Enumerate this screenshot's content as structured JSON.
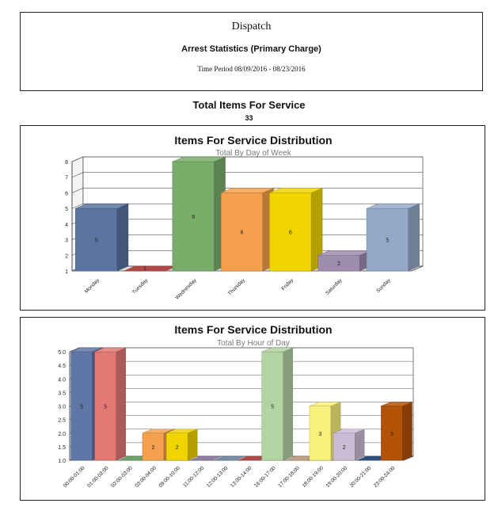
{
  "header": {
    "title": "Dispatch",
    "report": "Arrest Statistics (Primary Charge)",
    "period": "Time Period 08/09/2016 - 08/23/2016"
  },
  "total": {
    "label": "Total Items For Service",
    "value": "33"
  },
  "chart_data": [
    {
      "type": "bar",
      "title": "Items For Service Distribution",
      "subtitle": "Total By Day of Week",
      "categories": [
        "Monday",
        "Tuesday",
        "Wednesday",
        "Thursday",
        "Friday",
        "Saturday",
        "Sunday"
      ],
      "values": [
        5,
        1,
        8,
        6,
        6,
        2,
        5
      ],
      "data_labels": [
        "5",
        "1",
        "8",
        "6",
        "6",
        "2",
        "5"
      ],
      "colors": [
        "#5a74a0",
        "#b04a48",
        "#79ad6a",
        "#f4a04c",
        "#f0d400",
        "#9d8cae",
        "#94a9c8"
      ],
      "ylim": [
        1,
        8
      ],
      "yticks": [
        "1",
        "2",
        "3",
        "4",
        "5",
        "6",
        "7",
        "8"
      ],
      "grid": true,
      "three_d": true
    },
    {
      "type": "bar",
      "title": "Items For Service Distribution",
      "subtitle": "Total By Hour of Day",
      "categories": [
        "00:00-01:00",
        "01:00-02:00",
        "02:00-03:00",
        "03:00-04:00",
        "09:00-10:00",
        "11:00-12:00",
        "12:00-13:00",
        "13:00-14:00",
        "16:00-17:00",
        "17:00-18:00",
        "18:00-19:00",
        "19:00-20:00",
        "20:00-21:00",
        "23:00-24:00"
      ],
      "values": [
        5,
        5,
        1,
        2,
        2,
        1,
        1,
        1,
        5,
        1,
        3,
        2,
        1,
        3
      ],
      "data_labels": [
        "5",
        "5",
        "",
        "2",
        "2",
        "",
        "",
        "",
        "5",
        "",
        "3",
        "2",
        "",
        "3"
      ],
      "colors": [
        "#5f76a6",
        "#e27974",
        "#6ea36a",
        "#f4a04c",
        "#f0d400",
        "#8e7fa5",
        "#7a8ba8",
        "#b04a48",
        "#b2d4a3",
        "#c2a284",
        "#f8f07a",
        "#cbbcd6",
        "#2f4f80",
        "#b45208"
      ],
      "ylim": [
        1,
        5
      ],
      "yticks": [
        "1.0",
        "1.5",
        "2.0",
        "2.5",
        "3.0",
        "3.5",
        "4.0",
        "4.5",
        "5.0"
      ],
      "grid": true,
      "three_d": true
    }
  ]
}
